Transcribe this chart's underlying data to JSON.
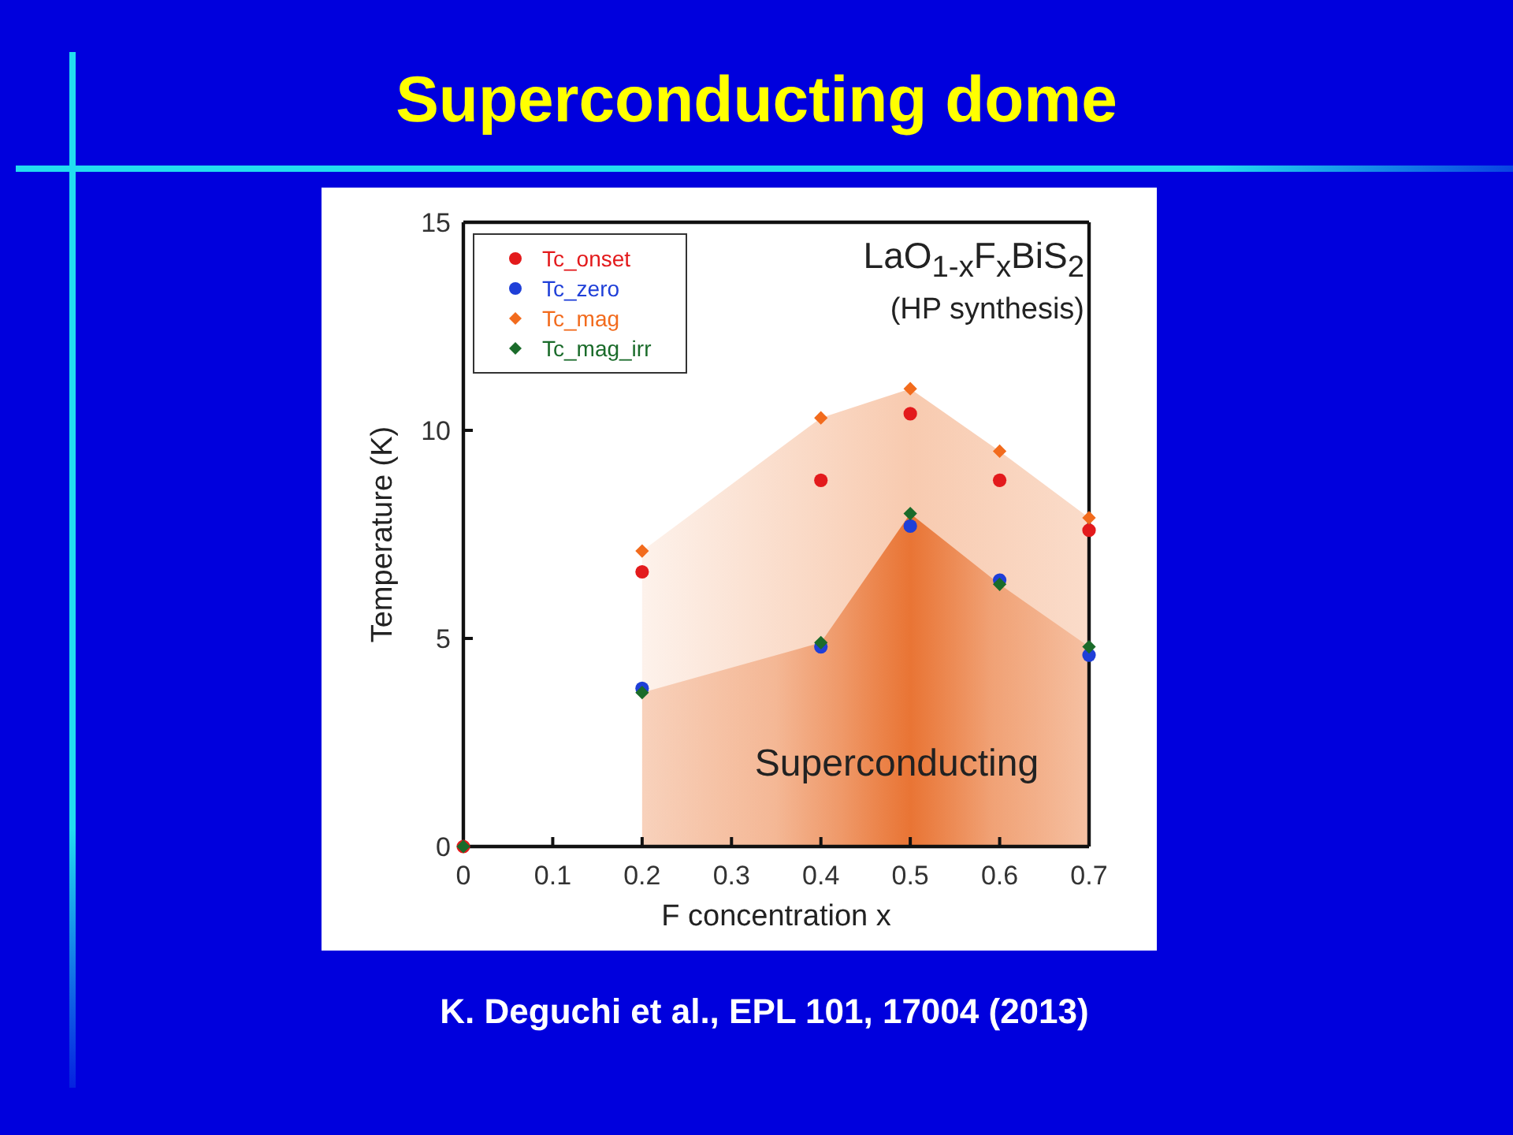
{
  "chart_data": {
    "type": "scatter",
    "title": "Superconducting dome",
    "xlabel": "F concentration x",
    "ylabel": "Temperature (K)",
    "annotations": [
      "LaO$_{1-x}$F$_{x}$BiS$_{2}$",
      "(HP synthesis)",
      "Superconducting",
      "K. Deguchi et al., EPL 101, 17004 (2013)"
    ],
    "x": [
      0,
      0.2,
      0.4,
      0.5,
      0.6,
      0.7
    ],
    "series": [
      {
        "name": "Tc_onset",
        "color": "#e31a1c",
        "marker": "circle",
        "values": [
          0,
          6.6,
          8.8,
          10.4,
          8.8,
          7.6
        ]
      },
      {
        "name": "Tc_zero",
        "color": "#1f3fd8",
        "marker": "circle",
        "values": [
          null,
          3.8,
          4.8,
          7.7,
          6.4,
          4.6
        ]
      },
      {
        "name": "Tc_mag",
        "color": "#f26b1d",
        "marker": "diamond",
        "values": [
          null,
          7.1,
          10.3,
          11.0,
          9.5,
          7.9
        ]
      },
      {
        "name": "Tc_mag_irr",
        "color": "#1a6b2a",
        "marker": "diamond",
        "values": [
          0,
          3.7,
          4.9,
          8.0,
          6.3,
          4.8
        ]
      }
    ],
    "xlim": [
      0,
      0.7
    ],
    "xticks": [
      0,
      0.1,
      0.2,
      0.3,
      0.4,
      0.5,
      0.6,
      0.7
    ],
    "ylim": [
      0,
      15
    ],
    "yticks": [
      0,
      5,
      10,
      15
    ],
    "legend": "top left"
  }
}
